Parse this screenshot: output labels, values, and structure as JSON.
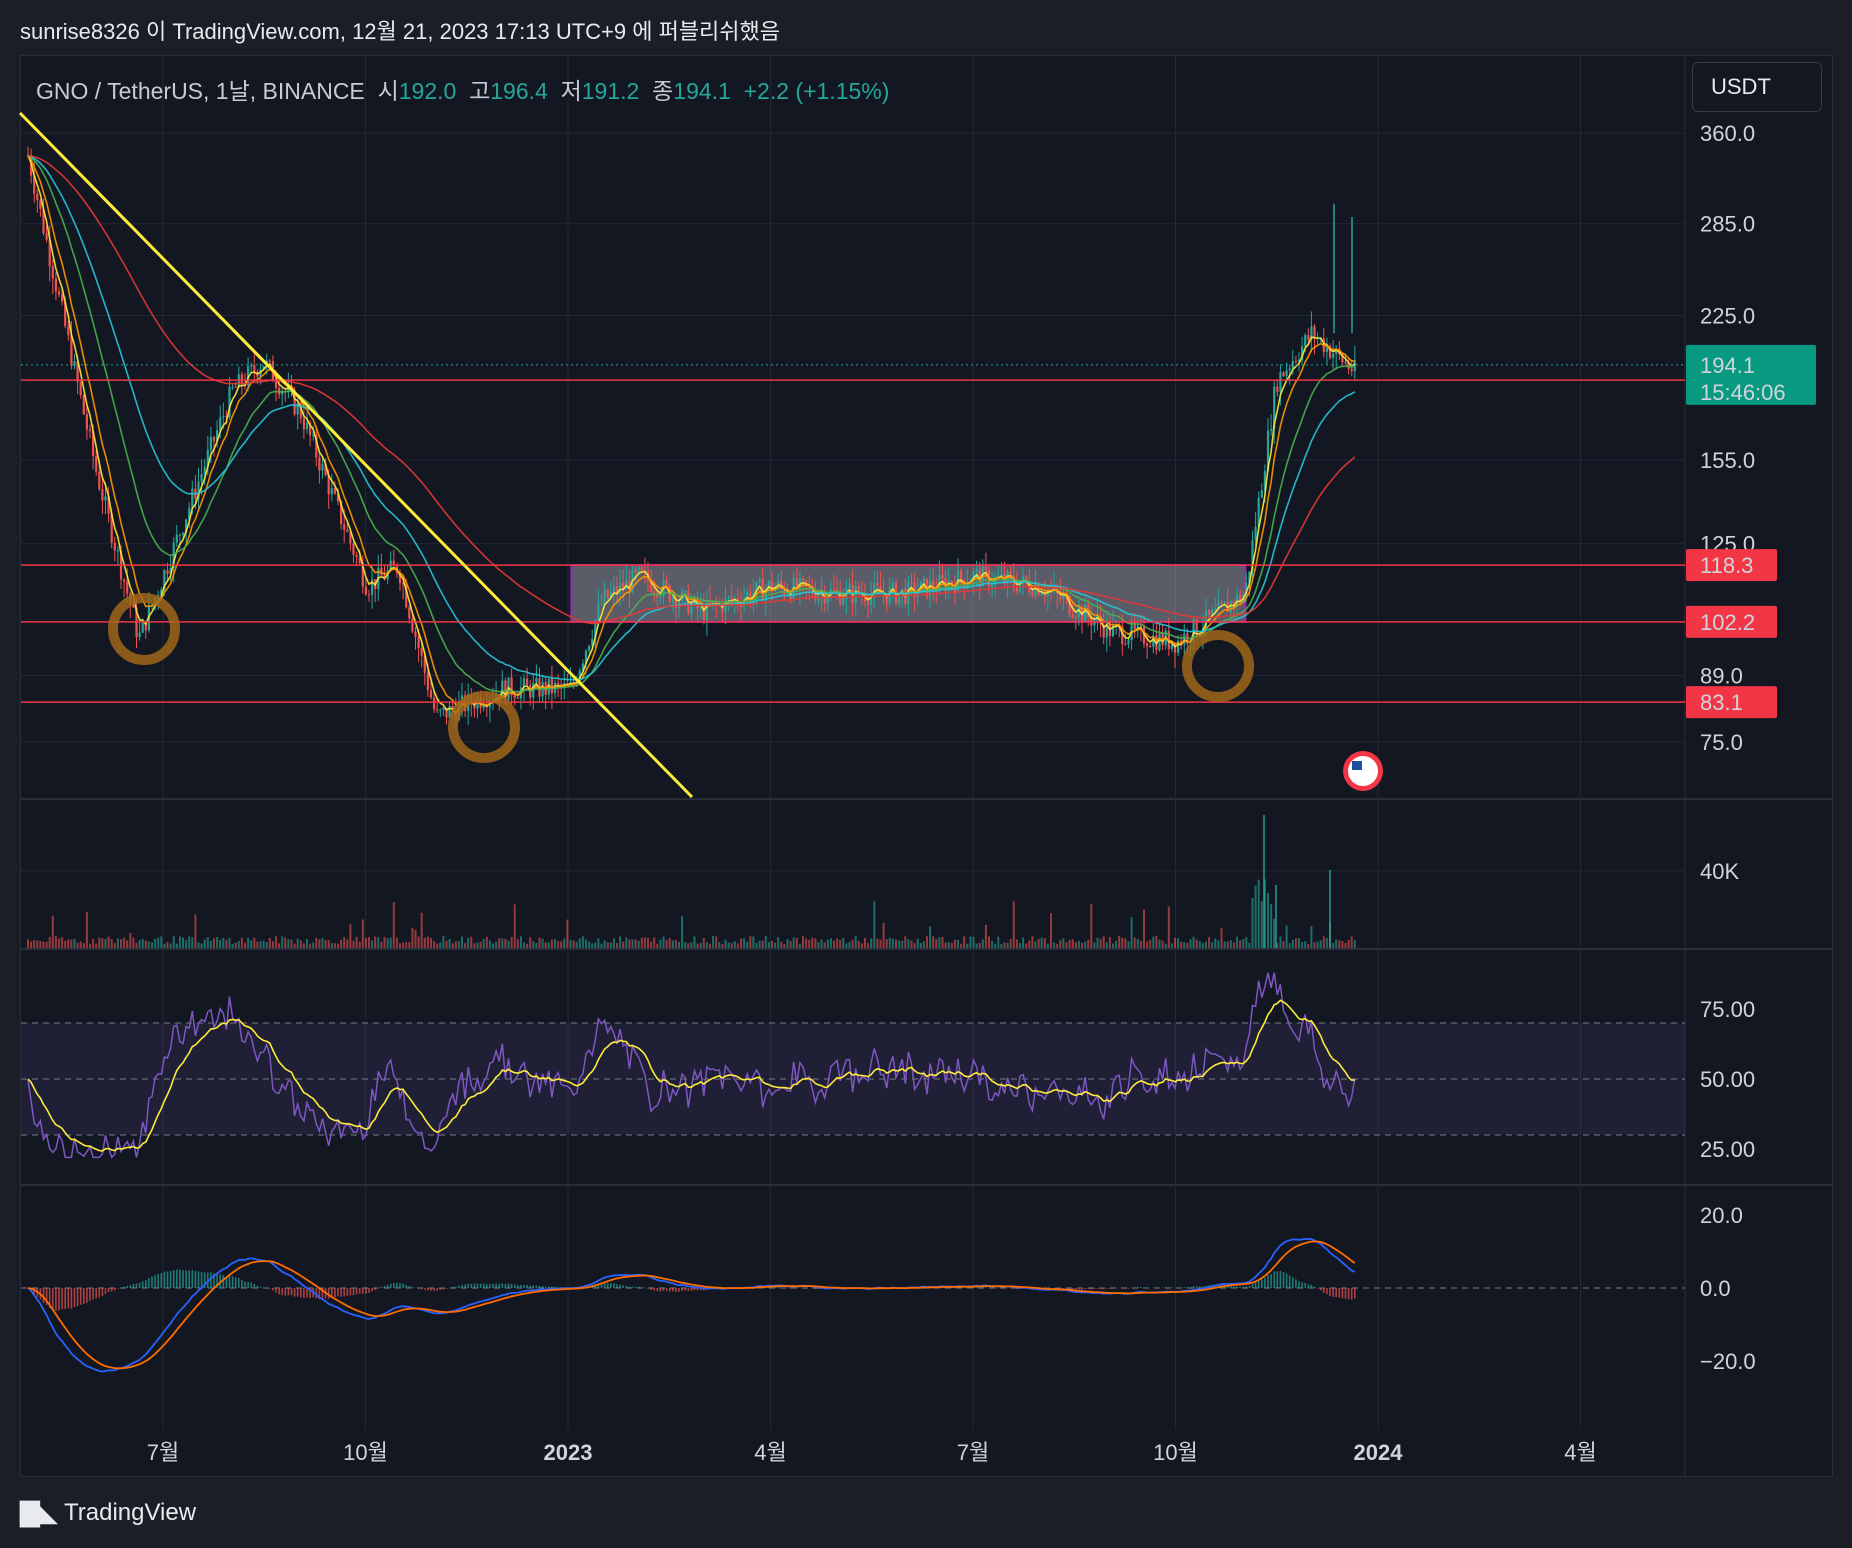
{
  "header": {
    "published_text": "sunrise8326 이 TradingView.com, 12월 21, 2023 17:13 UTC+9 에 퍼블리쉬했음"
  },
  "legend": {
    "symbol": "GNO / TetherUS, 1날, BINANCE",
    "open_label": "시",
    "open": "192.0",
    "high_label": "고",
    "high": "196.4",
    "low_label": "저",
    "low": "191.2",
    "close_label": "종",
    "close": "194.1",
    "change": "+2.2 (+1.15%)"
  },
  "currency_button": "USDT",
  "footer": {
    "brand": "TradingView"
  },
  "colors": {
    "up": "#26a69a",
    "down": "#ef5350",
    "level_line": "#f23645",
    "trend_line": "#ffeb3b",
    "rsi": "#7e57c2",
    "macd": "#2962ff",
    "signal": "#ff6d00"
  },
  "chart_data": [
    {
      "type": "candlestick",
      "pane": "price",
      "y_scale": "log",
      "y_ticks": [
        "360.0",
        "285.0",
        "225.0",
        "155.0",
        "125.0",
        "89.0",
        "75.0"
      ],
      "x_ticks": [
        "7월",
        "10월",
        "2023",
        "4월",
        "7월",
        "10월",
        "2024",
        "4월"
      ],
      "last_price": {
        "value": "194.1",
        "countdown": "15:46:06"
      },
      "horizontal_levels": [
        "190.5",
        "118.3",
        "102.2",
        "83.1"
      ],
      "range_box": {
        "from": "2023-01",
        "to": "2023-11",
        "low": 102.2,
        "high": 118.3
      },
      "approx_close_path": [
        [
          "2022-05",
          340
        ],
        [
          "2022-06",
          150
        ],
        [
          "2022-06-20",
          98
        ],
        [
          "2022-07",
          115
        ],
        [
          "2022-08",
          185
        ],
        [
          "2022-08-15",
          200
        ],
        [
          "2022-09",
          175
        ],
        [
          "2022-10",
          112
        ],
        [
          "2022-10-15",
          118
        ],
        [
          "2022-11",
          80
        ],
        [
          "2022-12",
          86
        ],
        [
          "2023-01",
          86
        ],
        [
          "2023-01-15",
          108
        ],
        [
          "2023-02",
          115
        ],
        [
          "2023-03",
          105
        ],
        [
          "2023-04",
          112
        ],
        [
          "2023-05",
          110
        ],
        [
          "2023-06",
          110
        ],
        [
          "2023-07",
          115
        ],
        [
          "2023-08",
          112
        ],
        [
          "2023-09",
          100
        ],
        [
          "2023-10",
          97
        ],
        [
          "2023-11",
          110
        ],
        [
          "2023-11-15",
          190
        ],
        [
          "2023-12",
          215
        ],
        [
          "2023-12-21",
          194.1
        ]
      ]
    },
    {
      "type": "bar",
      "pane": "volume",
      "y_ticks": [
        "40K"
      ]
    },
    {
      "type": "line",
      "pane": "rsi",
      "y_ticks": [
        "75.00",
        "50.00",
        "25.00"
      ],
      "band": [
        30,
        70
      ]
    },
    {
      "type": "line",
      "pane": "macd",
      "y_ticks": [
        "20.0",
        "0.0",
        "−20.0"
      ]
    }
  ]
}
